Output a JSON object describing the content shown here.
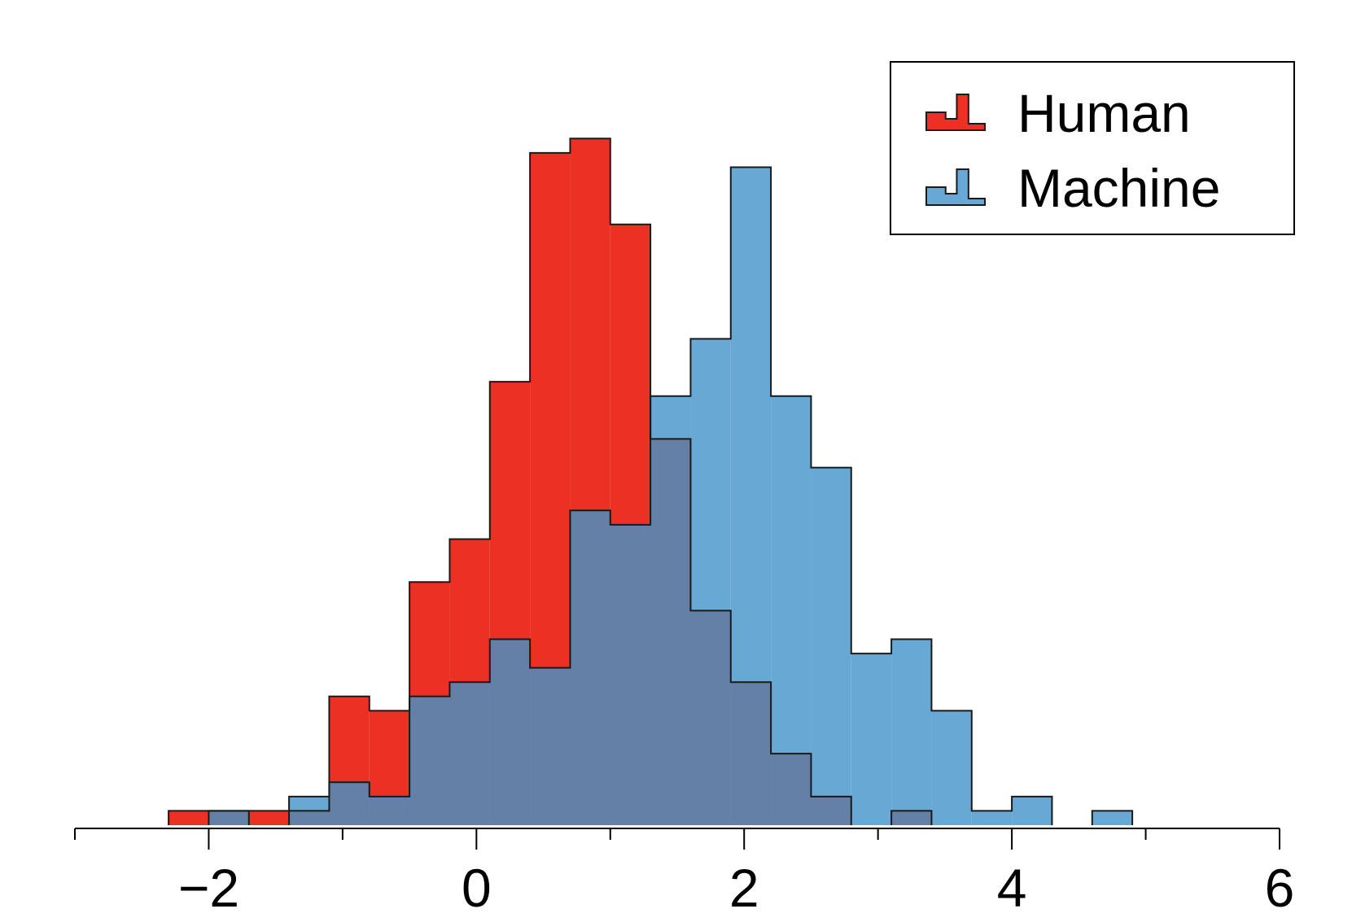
{
  "chart_data": {
    "type": "histogram",
    "title": "",
    "xlabel": "",
    "ylabel": "",
    "xlim": [
      -3,
      6
    ],
    "ylim": [
      0,
      52
    ],
    "x_ticks": [
      -3,
      -2,
      -1,
      0,
      1,
      2,
      3,
      4,
      5,
      6
    ],
    "x_tick_labels": [
      {
        "value": -2,
        "label": "−2"
      },
      {
        "value": 0,
        "label": "0"
      },
      {
        "value": 2,
        "label": "2"
      },
      {
        "value": 4,
        "label": "4"
      },
      {
        "value": 6,
        "label": "6"
      }
    ],
    "bin_edges": [
      -2.3,
      -2.0,
      -1.7,
      -1.4,
      -1.1,
      -0.8,
      -0.5,
      -0.2,
      0.1,
      0.4,
      0.7,
      1.0,
      1.3,
      1.6,
      1.9,
      2.2,
      2.5,
      2.8,
      3.1,
      3.4,
      3.7,
      4.0,
      4.3,
      4.6,
      4.9
    ],
    "overlap_color": "#6580a6",
    "legend_position": "top-right",
    "series": [
      {
        "name": "Human",
        "color": "#ec3124",
        "counts": [
          1,
          1,
          1,
          1,
          9,
          8,
          17,
          20,
          31,
          47,
          48,
          42,
          27,
          15,
          10,
          5,
          2,
          0,
          1,
          0,
          0,
          0,
          0,
          0
        ]
      },
      {
        "name": "Machine",
        "color": "#68a8d4",
        "counts": [
          0,
          1,
          0,
          2,
          3,
          2,
          9,
          10,
          13,
          11,
          22,
          21,
          30,
          34,
          46,
          30,
          25,
          12,
          13,
          8,
          1,
          2,
          0,
          1
        ]
      }
    ]
  }
}
